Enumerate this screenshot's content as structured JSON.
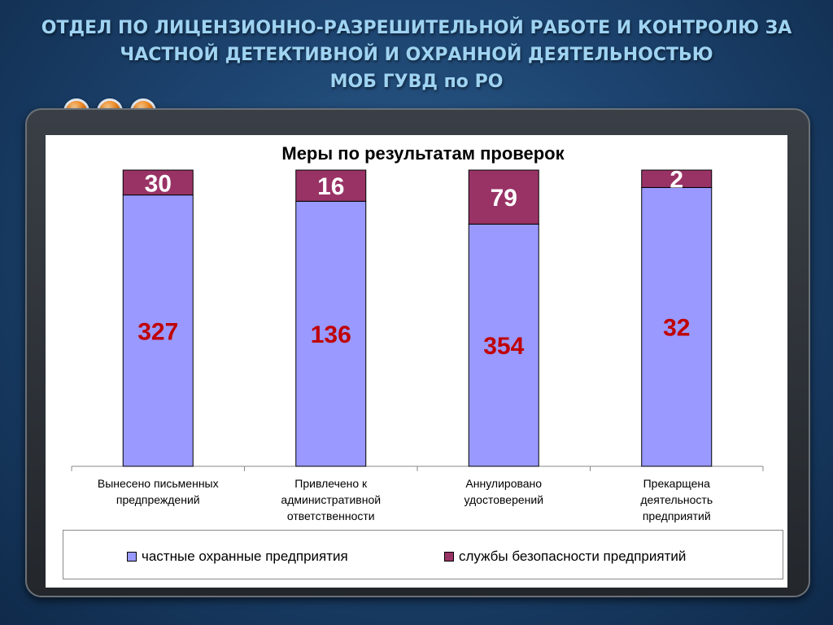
{
  "slide": {
    "title_lines": [
      "ОТДЕЛ ПО ЛИЦЕНЗИОННО-РАЗРЕШИТЕЛЬНОЙ РАБОТЕ И КОНТРОЛЮ ЗА",
      "ЧАСТНОЙ ДЕТЕКТИВНОЙ И ОХРАННОЙ ДЕЯТЕЛЬНОСТЬЮ",
      "МОБ ГУВД по РО"
    ]
  },
  "colors": {
    "series_private": "#9999ff",
    "series_security": "#993366",
    "label_text_red": "#c00000"
  },
  "chart_data": {
    "type": "bar",
    "stacked": true,
    "title": "Меры по результатам проверок",
    "categories": [
      [
        "Вынесено письменных",
        "предпреждений"
      ],
      [
        "Привлечено к",
        "административной",
        "ответственности"
      ],
      [
        "Аннулировано",
        "удостоверений"
      ],
      [
        "Прекарщена",
        "деятельность",
        "предприятий"
      ]
    ],
    "series": [
      {
        "name": "частные охранные предприятия",
        "values": [
          327,
          136,
          354,
          32
        ]
      },
      {
        "name": "службы безопасности предприятий",
        "values": [
          30,
          16,
          79,
          2
        ]
      }
    ],
    "normalized_to_100_percent": true,
    "grid": false,
    "legend_position": "bottom"
  }
}
